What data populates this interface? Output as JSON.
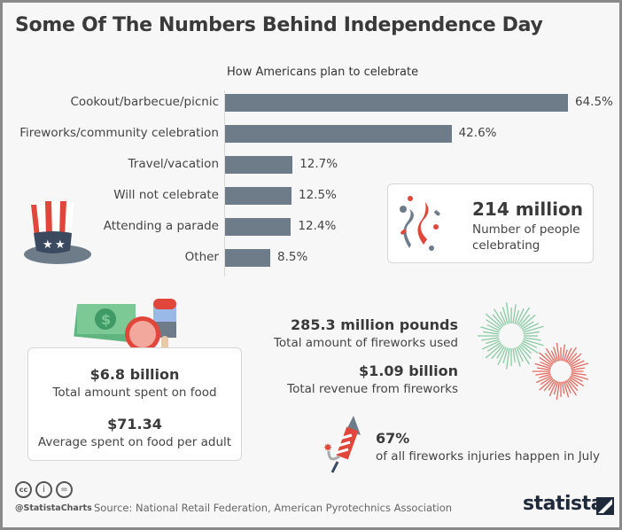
{
  "title": "Some Of The Numbers Behind Independence Day",
  "chart_data": {
    "type": "bar",
    "orientation": "horizontal",
    "title": "How Americans plan to celebrate",
    "categories": [
      "Cookout/barbecue/picnic",
      "Fireworks/community celebration",
      "Travel/vacation",
      "Will not celebrate",
      "Attending a parade",
      "Other"
    ],
    "values": [
      64.5,
      42.6,
      12.7,
      12.5,
      12.4,
      8.5
    ],
    "labels": [
      "64.5%",
      "42.6%",
      "12.7%",
      "12.5%",
      "12.4%",
      "8.5%"
    ],
    "xlabel": "",
    "ylabel": "",
    "xlim": [
      0,
      70
    ],
    "bar_color": "#6e7c89"
  },
  "people": {
    "value": "214 million",
    "label": "Number of people celebrating"
  },
  "food": {
    "total_value": "$6.8 billion",
    "total_label": "Total amount spent on food",
    "avg_value": "$71.34",
    "avg_label": "Average spent on food per adult"
  },
  "fireworks": {
    "pounds_value": "285.3 million pounds",
    "pounds_label": "Total amount of fireworks used",
    "revenue_value": "$1.09 billion",
    "revenue_label": "Total revenue from fireworks",
    "injury_value": "67%",
    "injury_label": "of all fireworks injuries happen in July"
  },
  "footer": {
    "handle": "@StatistaCharts",
    "source": "Source: National Retail Federation, American Pyrotechnics Association",
    "brand": "statista"
  },
  "colors": {
    "red": "#e0473a",
    "navy": "#3b4a5e",
    "green": "#6fbf8f"
  }
}
